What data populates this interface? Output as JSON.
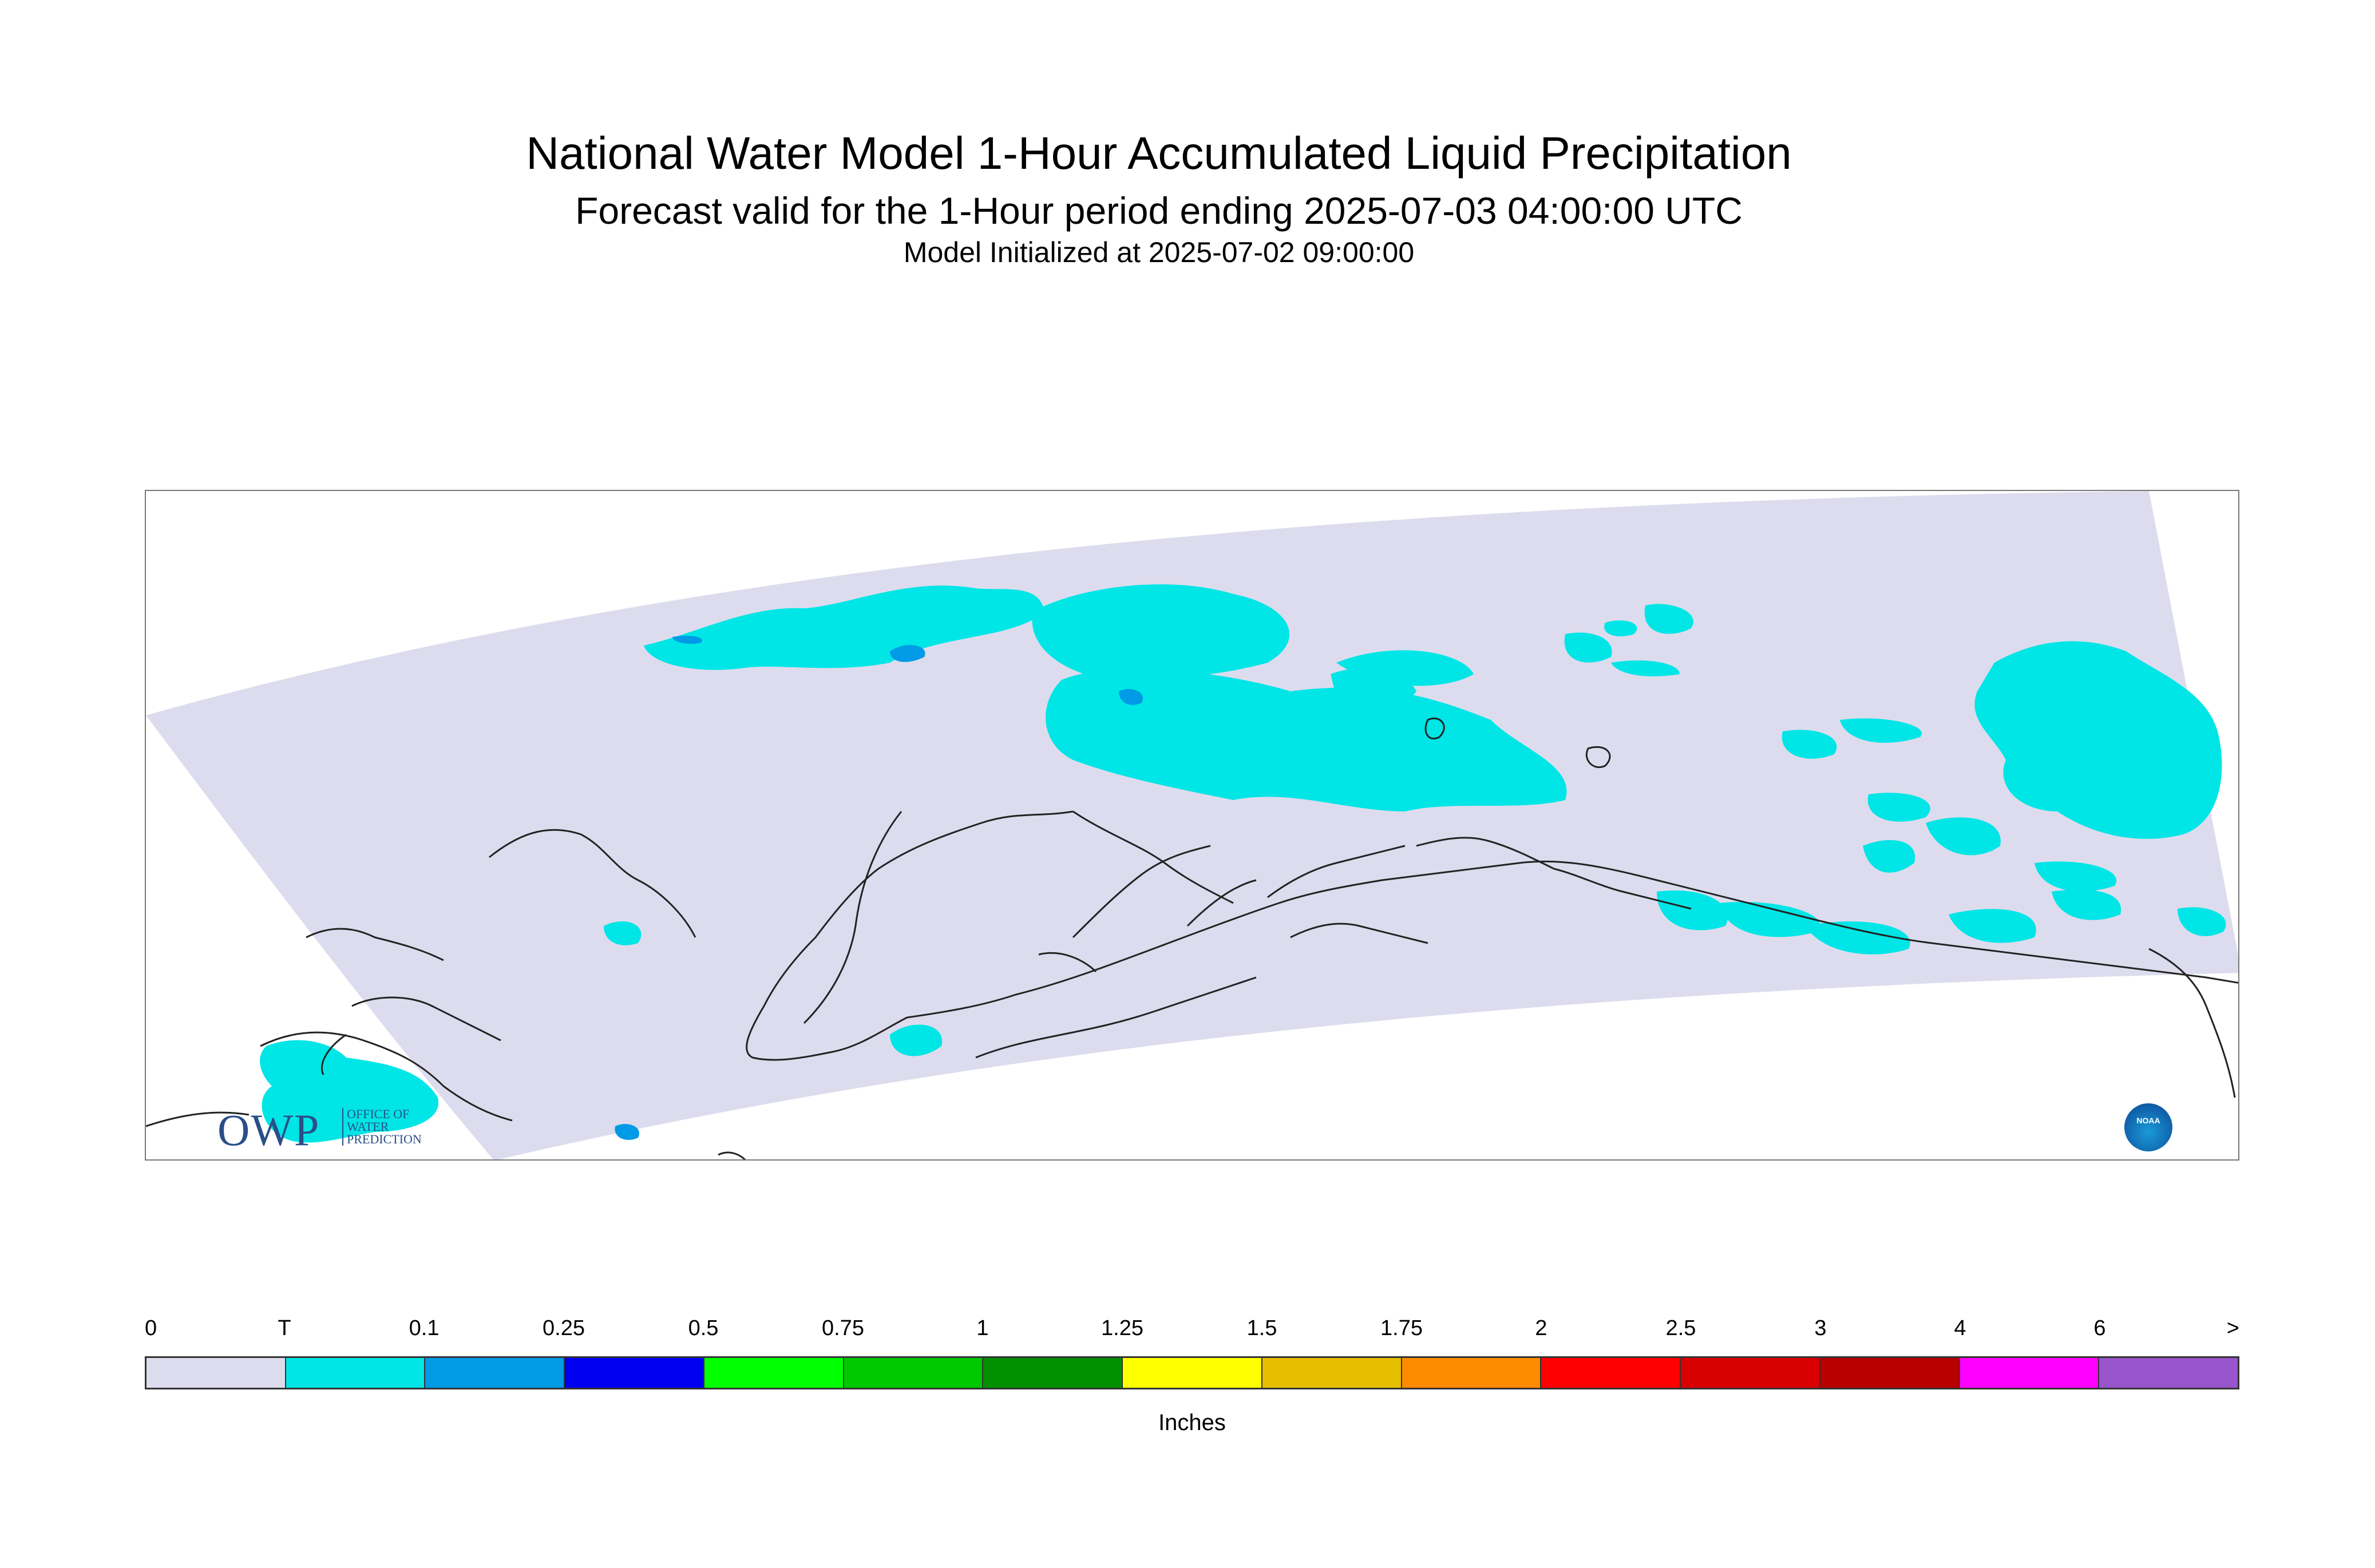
{
  "header": {
    "title": "National Water Model 1-Hour Accumulated Liquid Precipitation",
    "subtitle": "Forecast valid for the 1-Hour period ending 2025-07-03 04:00:00 UTC",
    "init": "Model Initialized at 2025-07-02 09:00:00"
  },
  "logos": {
    "owp_mark": "OWP",
    "owp_name": [
      "OFFICE OF",
      "WATER",
      "PREDICTION"
    ],
    "noaa_mark": "NOAA"
  },
  "map": {
    "region": "Alaska",
    "background_color": "#dcdcee",
    "precip_color_trace": "#00e5e5",
    "precip_color_01": "#009ae6",
    "coastline_color": "#222222"
  },
  "legend": {
    "units": "Inches",
    "tick_labels": [
      "0",
      "T",
      "0.1",
      "0.25",
      "0.5",
      "0.75",
      "1",
      "1.25",
      "1.5",
      "1.75",
      "2",
      "2.5",
      "3",
      "4",
      "6",
      ">"
    ],
    "colors": [
      "#dcdcee",
      "#00e5e5",
      "#009ae6",
      "#0000f0",
      "#00ff00",
      "#00c800",
      "#009000",
      "#ffff00",
      "#e6bf00",
      "#ff8c00",
      "#ff0000",
      "#d80000",
      "#b80000",
      "#ff00ff",
      "#9955cc"
    ]
  }
}
